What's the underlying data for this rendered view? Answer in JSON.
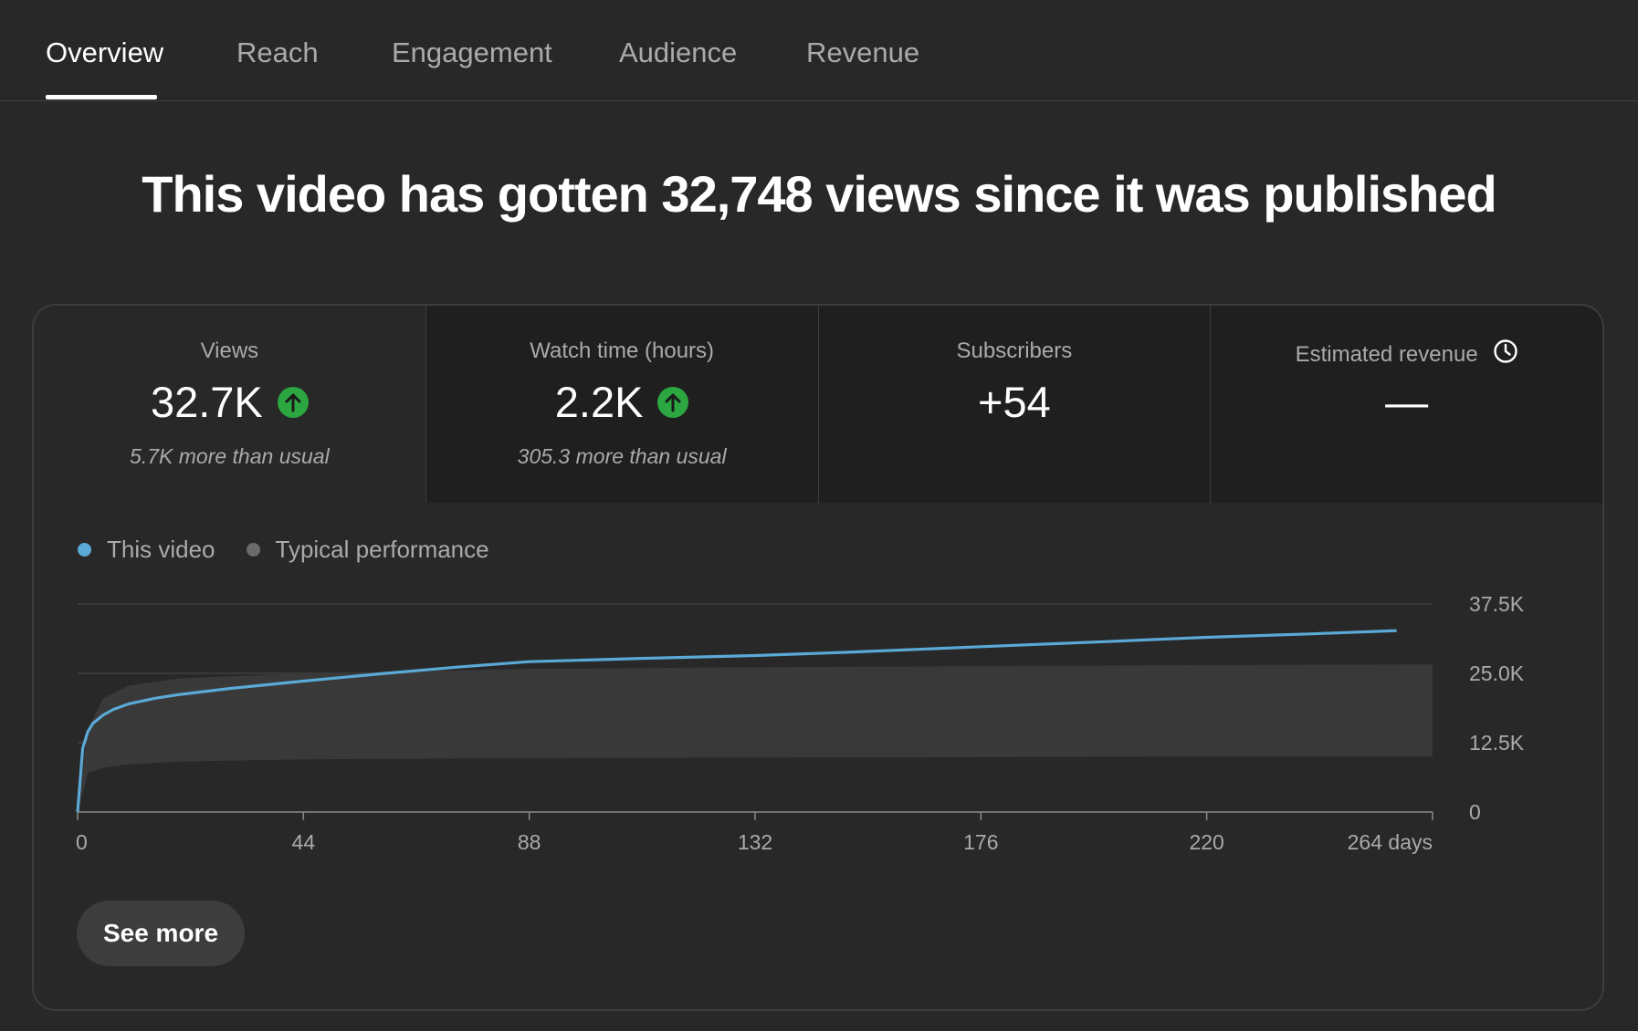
{
  "tabs": [
    {
      "label": "Overview",
      "active": true
    },
    {
      "label": "Reach",
      "active": false
    },
    {
      "label": "Engagement",
      "active": false
    },
    {
      "label": "Audience",
      "active": false
    },
    {
      "label": "Revenue",
      "active": false
    }
  ],
  "headline": "This video has gotten 32,748 views since it was published",
  "metrics": [
    {
      "label": "Views",
      "value": "32.7K",
      "trend": "up",
      "sub": "5.7K more than usual"
    },
    {
      "label": "Watch time (hours)",
      "value": "2.2K",
      "trend": "up",
      "sub": "305.3 more than usual"
    },
    {
      "label": "Subscribers",
      "value": "+54",
      "sub": ""
    },
    {
      "label": "Estimated revenue",
      "value": "—",
      "sub": "",
      "icon": "clock-icon"
    }
  ],
  "legend": [
    {
      "label": "This video",
      "color": "#5aa9d6"
    },
    {
      "label": "Typical performance",
      "color": "#6b6b6b"
    }
  ],
  "see_more_label": "See more",
  "colors": {
    "background": "#282828",
    "card_border": "#3d3d3d",
    "accent_line": "#5aa9d6",
    "typical_band": "#3a3a3a",
    "up_green": "#2ba640"
  },
  "chart_data": {
    "type": "line",
    "xlabel": "",
    "ylabel": "",
    "x_ticks": [
      "0",
      "44",
      "88",
      "132",
      "176",
      "220",
      "264 days"
    ],
    "y_ticks": [
      "0",
      "12.5K",
      "25.0K",
      "37.5K"
    ],
    "xlim": [
      0,
      264
    ],
    "ylim": [
      0,
      37500
    ],
    "y_axis_side": "right",
    "legend": "top-left",
    "series": [
      {
        "name": "This video",
        "x": [
          0,
          1,
          2,
          3,
          5,
          7,
          10,
          15,
          20,
          30,
          44,
          60,
          75,
          88,
          110,
          132,
          150,
          176,
          200,
          220,
          240,
          257
        ],
        "values": [
          0,
          11500,
          14500,
          16000,
          17500,
          18500,
          19500,
          20500,
          21200,
          22300,
          23600,
          25000,
          26200,
          27100,
          27700,
          28200,
          28800,
          29800,
          30700,
          31500,
          32100,
          32700
        ]
      }
    ],
    "band": {
      "name": "Typical performance",
      "x": [
        0,
        2,
        5,
        10,
        20,
        44,
        88,
        132,
        176,
        220,
        264
      ],
      "lower": [
        0,
        7000,
        8000,
        8600,
        9100,
        9500,
        9700,
        9800,
        9900,
        10000,
        10000
      ],
      "upper": [
        0,
        15000,
        20500,
        22800,
        24100,
        25000,
        25800,
        26100,
        26300,
        26500,
        26600
      ]
    }
  }
}
